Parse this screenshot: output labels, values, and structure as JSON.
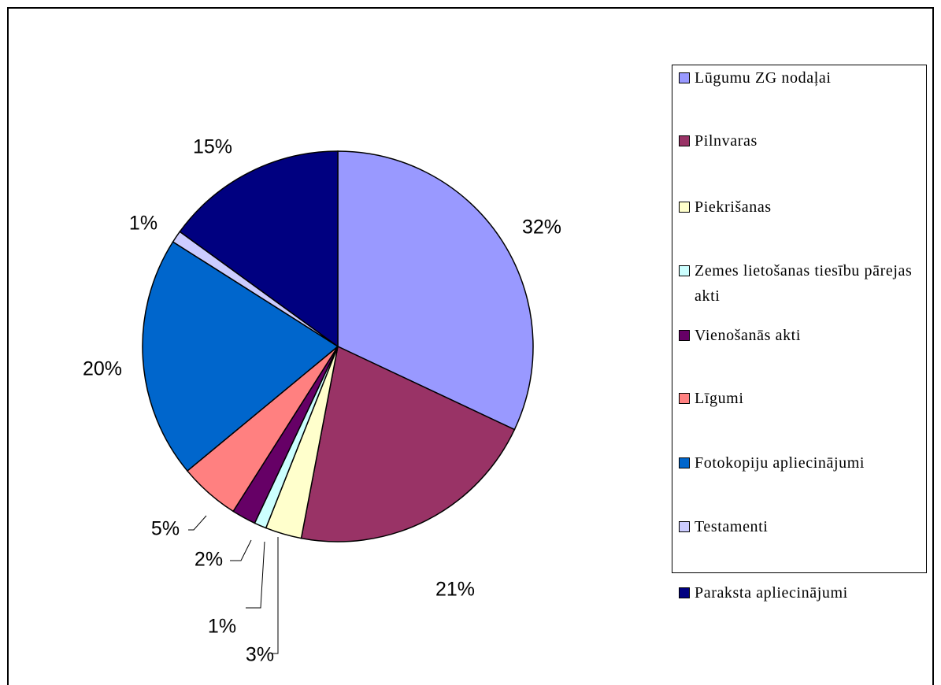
{
  "chart_data": {
    "type": "pie",
    "categories": [
      "Lūgumu ZG nodaļai",
      "Pilnvaras",
      "Piekrišanas",
      "Zemes lietošanas tiesību pārejas akti",
      "Vienošanās akti",
      "Līgumi",
      "Fotokopiju apliecinājumi",
      "Testamenti",
      "Paraksta apliecinājumi"
    ],
    "values": [
      32,
      21,
      3,
      1,
      2,
      5,
      20,
      1,
      15
    ],
    "value_labels": [
      "32%",
      "21%",
      "3%",
      "1%",
      "2%",
      "5%",
      "20%",
      "1%",
      "15%"
    ],
    "colors": [
      "#9999ff",
      "#993366",
      "#ffffcc",
      "#ccffff",
      "#660066",
      "#ff8080",
      "#0066cc",
      "#ccccff",
      "#000080"
    ],
    "legend": "right"
  }
}
